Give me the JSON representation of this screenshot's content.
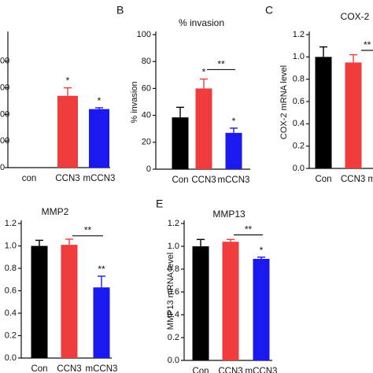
{
  "colors": {
    "con": "#000000",
    "ccn3": "#f03c3c",
    "mccn3": "#1a1af0",
    "axis": "#111111"
  },
  "chart_data": [
    {
      "id": "A",
      "panel_label": "",
      "title": "",
      "type": "bar",
      "ylabel": "",
      "ylim": [
        0,
        500
      ],
      "yticks": [
        0,
        100,
        200,
        300,
        400
      ],
      "ytick_labels": [
        "0",
        "00",
        "00",
        "00",
        "00"
      ],
      "categories": [
        "con",
        "CCN3",
        "mCCN3"
      ],
      "values": [
        0,
        270,
        220
      ],
      "errors": [
        0,
        30,
        5
      ],
      "sig_marks": [
        "",
        "*",
        "*"
      ],
      "brackets": []
    },
    {
      "id": "B",
      "panel_label": "B",
      "title": "% invasion",
      "type": "bar",
      "ylabel": "% invasion",
      "ylim": [
        0,
        100
      ],
      "yticks": [
        0,
        20,
        40,
        60,
        80,
        100
      ],
      "ytick_labels": [
        "0",
        "20",
        "40",
        "60",
        "80",
        "100"
      ],
      "categories": [
        "Con",
        "CCN3",
        "mCCN3"
      ],
      "values": [
        38.5,
        60,
        27
      ],
      "errors": [
        7.5,
        7,
        3.5
      ],
      "sig_marks": [
        "",
        "*",
        "*"
      ],
      "brackets": [
        {
          "from": 1,
          "to": 2,
          "label": "**",
          "y": 74
        }
      ]
    },
    {
      "id": "C",
      "panel_label": "C",
      "title": "COX-2",
      "type": "bar",
      "ylabel": "COX-2 mRNA level",
      "ylim": [
        0,
        1.2
      ],
      "yticks": [
        0,
        0.2,
        0.4,
        0.6,
        0.8,
        1.0,
        1.2
      ],
      "ytick_labels": [
        "0.0",
        "0.2",
        "0.4",
        "0.6",
        "0.8",
        "1.0",
        "1.2"
      ],
      "categories": [
        "Con",
        "CCN3 m"
      ],
      "values": [
        1.0,
        0.95
      ],
      "errors": [
        0.09,
        0.07
      ],
      "sig_marks": [
        "",
        ""
      ],
      "brackets": []
    },
    {
      "id": "D",
      "panel_label": "",
      "title": "MMP2",
      "type": "bar",
      "ylabel": "",
      "ylim": [
        0,
        1.2
      ],
      "yticks": [
        0,
        0.2,
        0.4,
        0.6,
        0.8,
        1.0,
        1.2
      ],
      "ytick_labels": [
        "0.0",
        "0.2",
        "0.4",
        "0.6",
        "0.8",
        "1.0",
        "1.2"
      ],
      "categories": [
        "Con",
        "CCN3",
        "mCCN3"
      ],
      "values": [
        1.0,
        1.01,
        0.63
      ],
      "errors": [
        0.05,
        0.05,
        0.1
      ],
      "sig_marks": [
        "",
        "",
        "**"
      ],
      "brackets": [
        {
          "from": 1,
          "to": 2,
          "label": "**",
          "y": 1.09
        }
      ]
    },
    {
      "id": "E",
      "panel_label": "E",
      "title": "MMP13",
      "type": "bar",
      "ylabel": "MMP13 mRNA level",
      "ylim": [
        0,
        1.2
      ],
      "yticks": [
        0,
        0.2,
        0.4,
        0.6,
        0.8,
        1.0,
        1.2
      ],
      "ytick_labels": [
        "0.0",
        "0.2",
        "0.4",
        "0.6",
        "0.8",
        "1.0",
        "1.2"
      ],
      "categories": [
        "Con",
        "CCN3",
        "mCCN3"
      ],
      "values": [
        1.0,
        1.04,
        0.89
      ],
      "errors": [
        0.06,
        0.02,
        0.015
      ],
      "sig_marks": [
        "",
        "",
        "*"
      ],
      "brackets": [
        {
          "from": 1,
          "to": 2,
          "label": "**",
          "y": 1.1
        }
      ]
    }
  ]
}
